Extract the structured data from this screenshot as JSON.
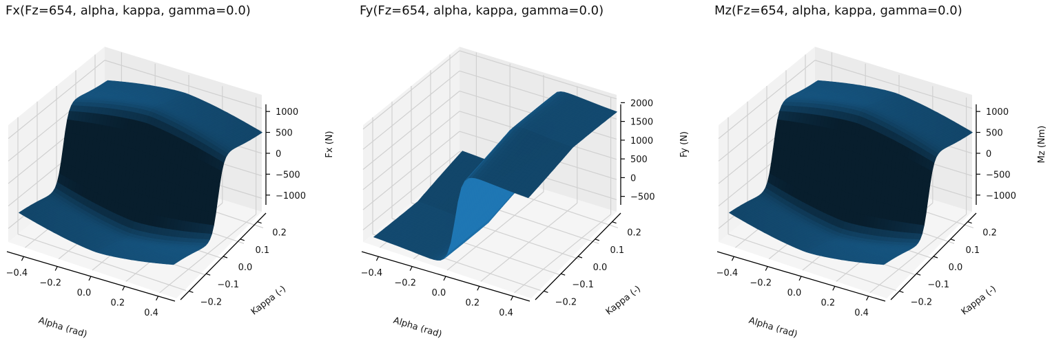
{
  "chart_data": [
    {
      "type": "surface3d",
      "title": "Fx(Fz=654, alpha, kappa, gamma=0.0)",
      "xlabel": "Alpha (rad)",
      "ylabel": "Kappa (-)",
      "zlabel": "Fx (N)",
      "x_ticks": [
        "−0.4",
        "−0.2",
        "0.0",
        "0.2",
        "0.4"
      ],
      "y_ticks": [
        "−0.2",
        "−0.1",
        "0.0",
        "0.1",
        "0.2"
      ],
      "z_ticks": [
        "−1000",
        "−500",
        "0",
        "500",
        "1000"
      ],
      "xlim": [
        -0.5,
        0.5
      ],
      "ylim": [
        -0.25,
        0.25
      ],
      "zlim": [
        -1300,
        1300
      ],
      "surface_color": "#1f77b4",
      "grid": true
    },
    {
      "type": "surface3d",
      "title": "Fy(Fz=654, alpha, kappa, gamma=0.0)",
      "xlabel": "Alpha (rad)",
      "ylabel": "Kappa (-)",
      "zlabel": "Fy (N)",
      "x_ticks": [
        "−0.4",
        "−0.2",
        "0.0",
        "0.2",
        "0.4"
      ],
      "y_ticks": [
        "−0.2",
        "−0.1",
        "0.0",
        "0.1",
        "0.2"
      ],
      "z_ticks": [
        "−500",
        "0",
        "500",
        "1000",
        "1500",
        "2000"
      ],
      "xlim": [
        -0.5,
        0.5
      ],
      "ylim": [
        -0.25,
        0.25
      ],
      "zlim": [
        -800,
        2100
      ],
      "surface_color": "#1f77b4",
      "grid": true
    },
    {
      "type": "surface3d",
      "title": "Mz(Fz=654, alpha, kappa, gamma=0.0)",
      "xlabel": "Alpha (rad)",
      "ylabel": "Kappa (-)",
      "zlabel": "Mz (Nm)",
      "x_ticks": [
        "−0.4",
        "−0.2",
        "0.0",
        "0.2",
        "0.4"
      ],
      "y_ticks": [
        "−0.2",
        "−0.1",
        "0.0",
        "0.1",
        "0.2"
      ],
      "z_ticks": [
        "−1000",
        "−500",
        "0",
        "500",
        "1000"
      ],
      "xlim": [
        -0.5,
        0.5
      ],
      "ylim": [
        -0.25,
        0.25
      ],
      "zlim": [
        -1300,
        1300
      ],
      "surface_color": "#1f77b4",
      "grid": true
    }
  ]
}
